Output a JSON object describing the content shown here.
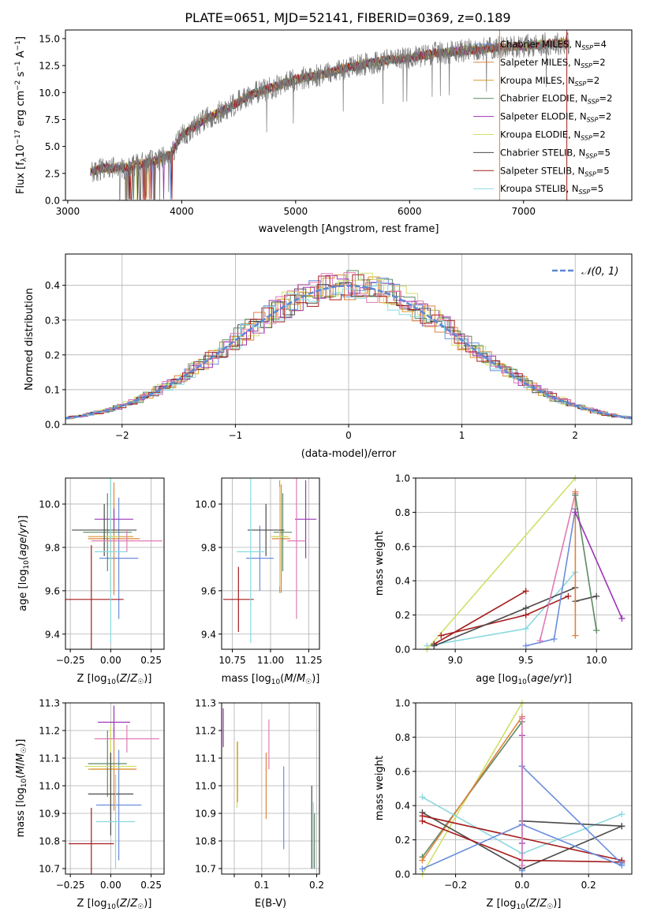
{
  "figure": {
    "title": "PLATE=0651, MJD=52141, FIBERID=0369, z=0.189"
  },
  "colors": {
    "model_colors": [
      "#6a8edc",
      "#e0823c",
      "#d99a2b",
      "#5e8a63",
      "#9b35b5",
      "#cfe06a",
      "#4a4a4a",
      "#a51c1c",
      "#8ad9df"
    ],
    "extra_pink": "#e07ab6",
    "gaussian": "#5b87d2",
    "grid": "#b0b0b0"
  },
  "chart_data": [
    {
      "id": "spectrum",
      "type": "line",
      "xlabel": "wavelength [Angstrom, rest frame]",
      "ylabel": "Flux [f_λ10^-17 erg cm^-2 s^-1 A^-1]",
      "xlim": [
        2980,
        7950
      ],
      "ylim": [
        0,
        15.8
      ],
      "xticks": [
        3000,
        4000,
        5000,
        6000,
        7000
      ],
      "yticks": [
        0.0,
        2.5,
        5.0,
        7.5,
        10.0,
        12.5,
        15.0
      ],
      "ytick_labels": [
        "0.0",
        "2.5",
        "5.0",
        "7.5",
        "10.0",
        "12.5",
        "15.0"
      ],
      "grid": false,
      "legend_position": "top-right",
      "legend": [
        "Chabrier MILES, N_SSP=4",
        "Salpeter MILES, N_SSP=2",
        "Kroupa MILES, N_SSP=2",
        "Chabrier ELODIE, N_SSP=2",
        "Salpeter ELODIE, N_SSP=2",
        "Kroupa ELODIE, N_SSP=2",
        "Chabrier STELIB, N_SSP=5",
        "Salpeter STELIB, N_SSP=5",
        "Kroupa STELIB, N_SSP=5"
      ],
      "continuum": {
        "x": [
          3200,
          3300,
          3400,
          3500,
          3600,
          3700,
          3800,
          3900,
          4000,
          4200,
          4400,
          4600,
          4800,
          5000,
          5200,
          5400,
          5600,
          5800,
          6000,
          6200,
          6400,
          6600,
          6800,
          7000,
          7200,
          7400,
          7900
        ],
        "y": [
          2.6,
          3.0,
          3.0,
          3.0,
          3.3,
          3.5,
          3.8,
          4.2,
          6.0,
          7.5,
          8.5,
          9.8,
          10.5,
          11.2,
          11.6,
          12.2,
          12.6,
          13.0,
          13.2,
          13.6,
          13.8,
          14.0,
          14.2,
          14.3,
          14.5,
          14.6,
          14.8
        ]
      }
    },
    {
      "id": "residual-hist",
      "type": "line",
      "xlabel": "(data-model)/error",
      "ylabel": "Normed distribution",
      "xlim": [
        -2.5,
        2.5
      ],
      "ylim": [
        0,
        0.49
      ],
      "xticks": [
        -2,
        -1,
        0,
        1,
        2
      ],
      "xtick_labels": [
        "−2",
        "−1",
        "0",
        "1",
        "2"
      ],
      "yticks": [
        0.0,
        0.1,
        0.2,
        0.3,
        0.4
      ],
      "ytick_labels": [
        "0.0",
        "0.1",
        "0.2",
        "0.3",
        "0.4"
      ],
      "grid": true,
      "legend_position": "top-right",
      "legend": [
        "𝒩(0, 1)"
      ]
    },
    {
      "id": "age-vs-Z",
      "type": "scatter",
      "xlabel": "Z [log10(Z/Z☉)]",
      "ylabel": "age [log10(age/yr)]",
      "xlim": [
        -0.28,
        0.33
      ],
      "ylim": [
        9.33,
        10.12
      ],
      "xticks": [
        -0.25,
        0.0,
        0.25
      ],
      "xtick_labels": [
        "−0.25",
        "0.00",
        "0.25"
      ],
      "yticks": [
        9.4,
        9.6,
        9.8,
        10.0
      ],
      "ytick_labels": [
        "9.4",
        "9.6",
        "9.8",
        "10.0"
      ],
      "grid": true,
      "points": [
        {
          "c": 0,
          "x": 0.05,
          "xe": 0.12,
          "y": 9.75,
          "ye": 0.28
        },
        {
          "c": 1,
          "x": 0.02,
          "xe": 0.16,
          "y": 9.84,
          "ye": 0.26
        },
        {
          "c": 2,
          "x": 0.0,
          "xe": 0.14,
          "y": 9.85,
          "ye": 0.26
        },
        {
          "c": 3,
          "x": -0.02,
          "xe": 0.15,
          "y": 9.87,
          "ye": 0.18
        },
        {
          "c": 4,
          "x": 0.02,
          "xe": 0.12,
          "y": 9.93,
          "ye": 0.05
        },
        {
          "c": 5,
          "x": 0.0,
          "xe": 0.05,
          "y": 9.85,
          "ye": 0.26
        },
        {
          "c": 6,
          "x": -0.04,
          "xe": 0.2,
          "y": 9.88,
          "ye": 0.12
        },
        {
          "c": 7,
          "x": -0.12,
          "xe": 0.2,
          "y": 9.56,
          "ye": 0.25
        },
        {
          "c": 8,
          "x": 0.0,
          "xe": 0.1,
          "y": 9.78,
          "ye": 0.42
        },
        {
          "c": "pink",
          "x": 0.1,
          "xe": 0.22,
          "y": 9.83,
          "ye": 0.05
        }
      ]
    },
    {
      "id": "age-vs-mass",
      "type": "scatter",
      "xlabel": "mass [log10(M/M☉)]",
      "ylabel": "",
      "xlim": [
        10.68,
        11.32
      ],
      "ylim": [
        9.33,
        10.12
      ],
      "xticks": [
        10.75,
        11.0,
        11.25
      ],
      "xtick_labels": [
        "10.75",
        "11.00",
        "11.25"
      ],
      "yticks": [
        9.4,
        9.6,
        9.8,
        10.0
      ],
      "ytick_labels": [
        "9.4",
        "9.6",
        "9.8",
        "10.0"
      ],
      "grid": true,
      "points": [
        {
          "c": 0,
          "x": 10.93,
          "xe": 0.09,
          "y": 9.75,
          "ye": 0.15
        },
        {
          "c": 1,
          "x": 11.07,
          "xe": 0.06,
          "y": 9.84,
          "ye": 0.25
        },
        {
          "c": 2,
          "x": 11.06,
          "xe": 0.05,
          "y": 9.85,
          "ye": 0.26
        },
        {
          "c": 3,
          "x": 11.08,
          "xe": 0.06,
          "y": 9.87,
          "ye": 0.18
        },
        {
          "c": 4,
          "x": 11.23,
          "xe": 0.07,
          "y": 9.93,
          "ye": 0.18
        },
        {
          "c": 5,
          "x": 11.06,
          "xe": 0.06,
          "y": 9.85,
          "ye": 0.23
        },
        {
          "c": 6,
          "x": 10.97,
          "xe": 0.12,
          "y": 9.88,
          "ye": 0.12
        },
        {
          "c": 7,
          "x": 10.79,
          "xe": 0.1,
          "y": 9.56,
          "ye": 0.15
        },
        {
          "c": 8,
          "x": 10.87,
          "xe": 0.09,
          "y": 9.78,
          "ye": 0.42
        },
        {
          "c": "pink",
          "x": 11.17,
          "xe": 0.06,
          "y": 9.83,
          "ye": 0.36
        }
      ]
    },
    {
      "id": "weight-vs-age",
      "type": "line",
      "xlabel": "age [log10(age/yr)]",
      "ylabel": "mass weight",
      "xlim": [
        8.72,
        10.25
      ],
      "ylim": [
        0,
        1.0
      ],
      "xticks": [
        9.0,
        9.5,
        10.0
      ],
      "xtick_labels": [
        "9.0",
        "9.5",
        "10.0"
      ],
      "yticks": [
        0.0,
        0.2,
        0.4,
        0.6,
        0.8,
        1.0
      ],
      "ytick_labels": [
        "0.0",
        "0.2",
        "0.4",
        "0.6",
        "0.8",
        "1.0"
      ],
      "grid": true,
      "series": [
        {
          "c": 8,
          "x": [
            8.8,
            9.5,
            9.85
          ],
          "y": [
            0.02,
            0.12,
            0.45
          ]
        },
        {
          "c": 5,
          "x": [
            8.8,
            9.85
          ],
          "y": [
            0.0,
            1.0
          ]
        },
        {
          "c": 7,
          "x": [
            8.9,
            9.5,
            9.8
          ],
          "y": [
            0.08,
            0.2,
            0.31
          ]
        },
        {
          "c": 7,
          "x": [
            8.85,
            9.5
          ],
          "y": [
            0.03,
            0.34
          ]
        },
        {
          "c": 6,
          "x": [
            8.85,
            9.5,
            9.85
          ],
          "y": [
            0.02,
            0.24,
            0.36
          ]
        },
        {
          "c": 6,
          "x": [
            9.85,
            10.0
          ],
          "y": [
            0.28,
            0.31
          ]
        },
        {
          "c": 0,
          "x": [
            9.5,
            9.7,
            9.85
          ],
          "y": [
            0.02,
            0.06,
            0.82
          ]
        },
        {
          "c": "pink",
          "x": [
            9.6,
            9.85
          ],
          "y": [
            0.05,
            0.91
          ]
        },
        {
          "c": 1,
          "x": [
            9.85,
            9.85
          ],
          "y": [
            0.08,
            0.92
          ]
        },
        {
          "c": 3,
          "x": [
            9.85,
            10.0
          ],
          "y": [
            0.9,
            0.11
          ]
        },
        {
          "c": 4,
          "x": [
            9.85,
            10.18
          ],
          "y": [
            0.8,
            0.18
          ]
        }
      ]
    },
    {
      "id": "mass-vs-Z",
      "type": "scatter",
      "xlabel": "Z [log10(Z/Z☉)]",
      "ylabel": "mass [log10(M/M☉)]",
      "xlim": [
        -0.28,
        0.33
      ],
      "ylim": [
        10.68,
        11.3
      ],
      "xticks": [
        -0.25,
        0.0,
        0.25
      ],
      "xtick_labels": [
        "−0.25",
        "0.00",
        "0.25"
      ],
      "yticks": [
        10.7,
        10.8,
        10.9,
        11.0,
        11.1,
        11.2,
        11.3
      ],
      "ytick_labels": [
        "10.7",
        "10.8",
        "10.9",
        "11.0",
        "11.1",
        "11.2",
        "11.3"
      ],
      "grid": true,
      "points": [
        {
          "c": 0,
          "x": 0.05,
          "xe": 0.14,
          "y": 10.93,
          "ye": 0.2
        },
        {
          "c": 1,
          "x": 0.02,
          "xe": 0.14,
          "y": 11.06,
          "ye": 0.15
        },
        {
          "c": 2,
          "x": 0.0,
          "xe": 0.14,
          "y": 11.06,
          "ye": 0.15
        },
        {
          "c": 3,
          "x": -0.02,
          "xe": 0.12,
          "y": 11.08,
          "ye": 0.12
        },
        {
          "c": 4,
          "x": 0.02,
          "xe": 0.1,
          "y": 11.23,
          "ye": 0.06
        },
        {
          "c": 5,
          "x": 0.0,
          "xe": 0.16,
          "y": 11.07,
          "ye": 0.15
        },
        {
          "c": 6,
          "x": 0.0,
          "xe": 0.14,
          "y": 10.97,
          "ye": 0.15
        },
        {
          "c": 7,
          "x": -0.12,
          "xe": 0.14,
          "y": 10.79,
          "ye": 0.13
        },
        {
          "c": 8,
          "x": 0.03,
          "xe": 0.12,
          "y": 10.87,
          "ye": 0.17
        },
        {
          "c": "pink",
          "x": 0.1,
          "xe": 0.2,
          "y": 11.17,
          "ye": 0.05
        }
      ]
    },
    {
      "id": "mass-vs-ebv",
      "type": "scatter",
      "xlabel": "E(B-V)",
      "ylabel": "",
      "xlim": [
        0.027,
        0.205
      ],
      "ylim": [
        10.68,
        11.3
      ],
      "xticks": [
        0.05,
        0.1,
        0.15,
        0.2
      ],
      "xtick_labels": [
        "",
        "0.1",
        "",
        "0.2"
      ],
      "yticks": [
        10.7,
        10.8,
        10.9,
        11.0,
        11.1,
        11.2,
        11.3
      ],
      "ytick_labels": [
        "10.7",
        "10.8",
        "10.9",
        "11.0",
        "11.1",
        "11.2",
        "11.3"
      ],
      "grid": true,
      "points": [
        {
          "c": 4,
          "x": 0.03,
          "xe": 0,
          "y": 11.21,
          "ye": 0.07
        },
        {
          "c": 5,
          "x": 0.055,
          "xe": 0,
          "y": 11.04,
          "ye": 0.12
        },
        {
          "c": 2,
          "x": 0.056,
          "xe": 0,
          "y": 11.05,
          "ye": 0.11
        },
        {
          "c": 1,
          "x": 0.108,
          "xe": 0,
          "y": 11.0,
          "ye": 0.12
        },
        {
          "c": "pink",
          "x": 0.113,
          "xe": 0,
          "y": 11.15,
          "ye": 0.09
        },
        {
          "c": 0,
          "x": 0.14,
          "xe": 0,
          "y": 10.92,
          "ye": 0.15
        },
        {
          "c": 6,
          "x": 0.191,
          "xe": 0,
          "y": 10.85,
          "ye": 0.15
        },
        {
          "c": 8,
          "x": 0.194,
          "xe": 0,
          "y": 10.82,
          "ye": 0.12
        },
        {
          "c": 3,
          "x": 0.196,
          "xe": 0,
          "y": 10.8,
          "ye": 0.1
        }
      ]
    },
    {
      "id": "weight-vs-Z",
      "type": "line",
      "xlabel": "Z [log10(Z/Z☉)]",
      "ylabel": "mass weight",
      "xlim": [
        -0.32,
        0.33
      ],
      "ylim": [
        0,
        1.0
      ],
      "xticks": [
        -0.2,
        0.0,
        0.2
      ],
      "xtick_labels": [
        "−0.2",
        "0.0",
        "0.2"
      ],
      "yticks": [
        0.0,
        0.2,
        0.4,
        0.6,
        0.8,
        1.0
      ],
      "ytick_labels": [
        "0.0",
        "0.2",
        "0.4",
        "0.6",
        "0.8",
        "1.0"
      ],
      "grid": true,
      "series": [
        {
          "c": 5,
          "x": [
            -0.3,
            0.0
          ],
          "y": [
            0.0,
            1.0
          ]
        },
        {
          "c": 3,
          "x": [
            -0.3,
            0.0
          ],
          "y": [
            0.1,
            0.89
          ]
        },
        {
          "c": 1,
          "x": [
            -0.3,
            0.0
          ],
          "y": [
            0.08,
            0.92
          ]
        },
        {
          "c": 4,
          "x": [
            0.0,
            0.0
          ],
          "y": [
            0.18,
            0.81
          ]
        },
        {
          "c": 8,
          "x": [
            -0.3,
            0.0,
            0.3
          ],
          "y": [
            0.45,
            0.12,
            0.35
          ]
        },
        {
          "c": 6,
          "x": [
            -0.3,
            0.0,
            0.3
          ],
          "y": [
            0.36,
            0.03,
            0.28
          ]
        },
        {
          "c": 6,
          "x": [
            0.0,
            0.3
          ],
          "y": [
            0.31,
            0.28
          ]
        },
        {
          "c": 7,
          "x": [
            -0.3,
            0.0,
            0.3
          ],
          "y": [
            0.31,
            0.08,
            0.07
          ]
        },
        {
          "c": 7,
          "x": [
            -0.3,
            0.3
          ],
          "y": [
            0.34,
            0.08
          ]
        },
        {
          "c": 0,
          "x": [
            -0.3,
            0.0,
            0.3
          ],
          "y": [
            0.03,
            0.29,
            0.05
          ]
        },
        {
          "c": 0,
          "x": [
            0.0,
            0.3
          ],
          "y": [
            0.63,
            0.06
          ]
        },
        {
          "c": 0,
          "x": [
            0.0,
            0.0
          ],
          "y": [
            0.02,
            0.63
          ]
        },
        {
          "c": "pink",
          "x": [
            0.0,
            0.0
          ],
          "y": [
            0.05,
            0.91
          ]
        }
      ]
    }
  ]
}
